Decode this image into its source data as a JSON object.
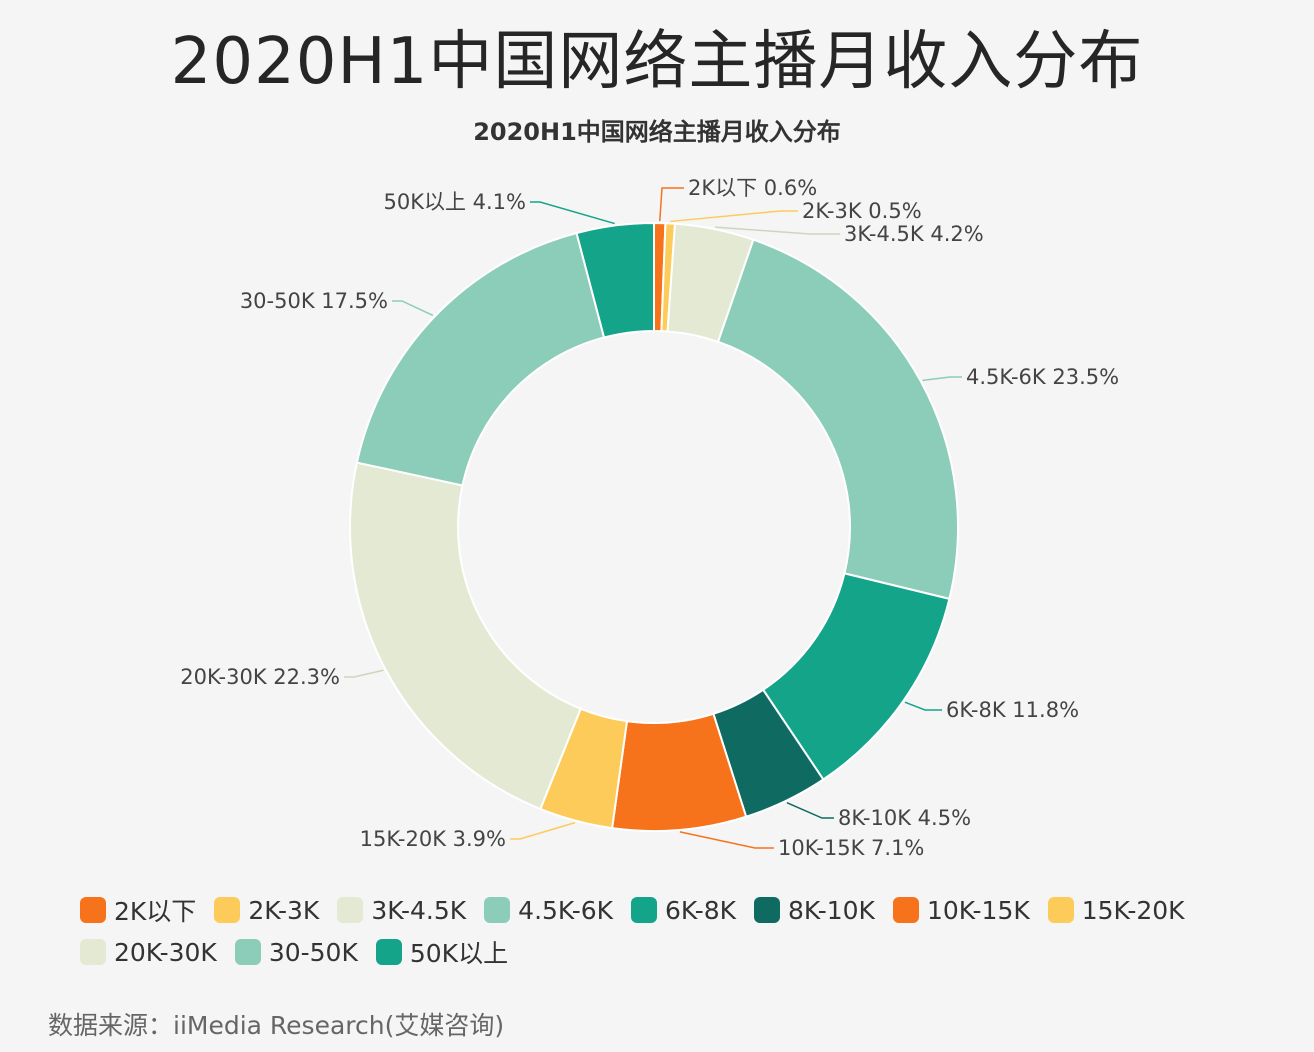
{
  "page": {
    "main_title": "2020H1中国网络主播月收入分布",
    "source": "数据来源：iiMedia Research(艾媒咨询)"
  },
  "chart_data": {
    "type": "pie",
    "donut": true,
    "title": "2020H1中国网络主播月收入分布",
    "unit": "%",
    "legend_position": "bottom",
    "slices": [
      {
        "name": "2K以下",
        "value": 0.6,
        "color": "#F6731C",
        "label": "2K以下 0.6%"
      },
      {
        "name": "2K-3K",
        "value": 0.5,
        "color": "#FDCB5A",
        "label": "2K-3K 0.5%"
      },
      {
        "name": "3K-4.5K",
        "value": 4.2,
        "color": "#E4E9D3",
        "label": "3K-4.5K 4.2%"
      },
      {
        "name": "4.5K-6K",
        "value": 23.5,
        "color": "#8CCDB9",
        "label": "4.5K-6K 23.5%"
      },
      {
        "name": "6K-8K",
        "value": 11.8,
        "color": "#14A48A",
        "label": "6K-8K 11.8%"
      },
      {
        "name": "8K-10K",
        "value": 4.5,
        "color": "#0F6A62",
        "label": "8K-10K 4.5%"
      },
      {
        "name": "10K-15K",
        "value": 7.1,
        "color": "#F6731C",
        "label": "10K-15K 7.1%"
      },
      {
        "name": "15K-20K",
        "value": 3.9,
        "color": "#FDCB5A",
        "label": "15K-20K 3.9%"
      },
      {
        "name": "20K-30K",
        "value": 22.3,
        "color": "#E4E9D3",
        "label": "20K-30K 22.3%"
      },
      {
        "name": "30-50K",
        "value": 17.5,
        "color": "#8CCDB9",
        "label": "30-50K 17.5%"
      },
      {
        "name": "50K以上",
        "value": 4.1,
        "color": "#14A48A",
        "label": "50K以上 4.1%"
      }
    ]
  }
}
